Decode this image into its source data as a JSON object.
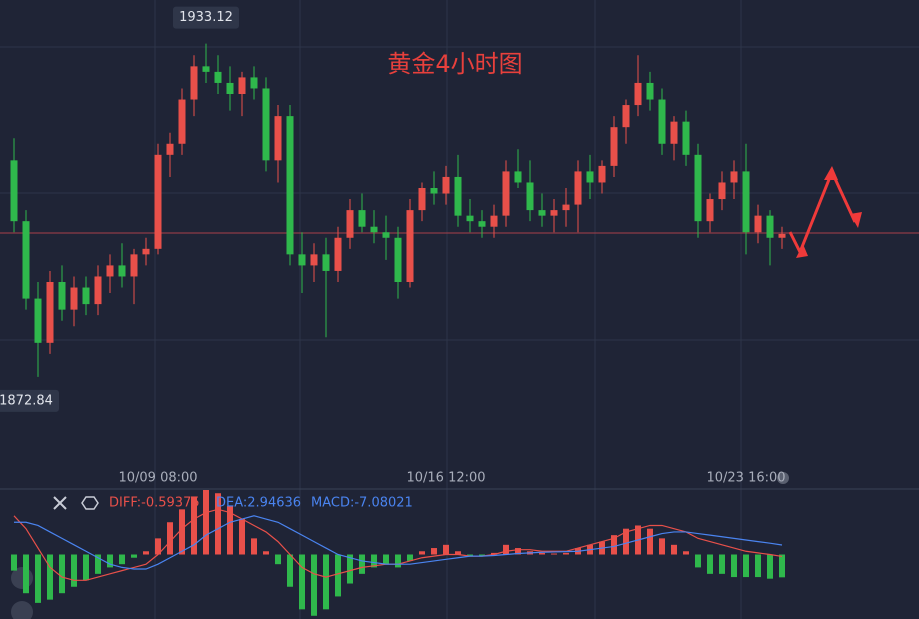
{
  "chart_data": [
    {
      "type": "candlestick",
      "title": "黄金4小时图",
      "up_color": "#e8504a",
      "down_color": "#2fb84c",
      "ylim": [
        1856,
        1941
      ],
      "categories": [
        null,
        null,
        null,
        null,
        null,
        null,
        null,
        null,
        null,
        null,
        null,
        null,
        "10/09 08:00",
        null,
        null,
        null,
        null,
        null,
        null,
        null,
        null,
        null,
        null,
        null,
        null,
        null,
        null,
        null,
        null,
        null,
        null,
        null,
        null,
        null,
        null,
        null,
        "10/16 12:00",
        null,
        null,
        null,
        null,
        null,
        null,
        null,
        null,
        null,
        null,
        null,
        null,
        null,
        null,
        null,
        null,
        null,
        null,
        null,
        null,
        null,
        null,
        null,
        null,
        "10/23 16:00",
        null,
        null,
        null
      ],
      "open": [
        1912,
        1901,
        1887,
        1879,
        1890,
        1885,
        1889,
        1886,
        1891,
        1893,
        1891,
        1895,
        1896,
        1913,
        1915,
        1923,
        1929,
        1928,
        1926,
        1924,
        1927,
        1925,
        1912,
        1920,
        1895,
        1893,
        1895,
        1892,
        1898,
        1903,
        1900,
        1899,
        1898,
        1890,
        1903,
        1907,
        1906,
        1909,
        1902,
        1901,
        1900,
        1902,
        1910,
        1908,
        1903,
        1902,
        1903,
        1904,
        1910,
        1908,
        1911,
        1918,
        1922,
        1926,
        1923,
        1915,
        1919,
        1913,
        1901,
        1905,
        1908,
        1910,
        1899,
        1902,
        1898
      ],
      "high": [
        1916,
        1903,
        1890,
        1892,
        1893,
        1891,
        1891,
        1893,
        1895,
        1897,
        1896,
        1898,
        1915,
        1917,
        1925,
        1931,
        1933.12,
        1931,
        1929,
        1928,
        1929,
        1927,
        1922,
        1922,
        1899,
        1897,
        1898,
        1900,
        1905,
        1906,
        1903,
        1902,
        1900,
        1905,
        1908,
        1910,
        1911,
        1913,
        1905,
        1903,
        1904,
        1912,
        1914,
        1912,
        1906,
        1905,
        1907,
        1912,
        1913,
        1912,
        1920,
        1923,
        1931,
        1928,
        1925,
        1920,
        1921,
        1915,
        1906,
        1910,
        1912,
        1915,
        1904,
        1903,
        1900
      ],
      "low": [
        1899,
        1885,
        1872.84,
        1877,
        1883,
        1882,
        1884,
        1884,
        1888,
        1889,
        1886,
        1893,
        1895,
        1909,
        1913,
        1920,
        1926,
        1924,
        1921,
        1920,
        1923,
        1910,
        1908,
        1893,
        1888,
        1890,
        1880,
        1890,
        1896,
        1899,
        1897,
        1894,
        1887,
        1889,
        1901,
        1904,
        1904,
        1900,
        1899,
        1898,
        1898,
        1900,
        1907,
        1901,
        1900,
        1899,
        1900,
        1899,
        1905,
        1906,
        1909,
        1915,
        1920,
        1921,
        1913,
        1912,
        1911,
        1898,
        1899,
        1903,
        1905,
        1895,
        1897,
        1893,
        1896
      ],
      "close": [
        1901,
        1887,
        1879,
        1890,
        1885,
        1889,
        1886,
        1891,
        1893,
        1891,
        1895,
        1896,
        1913,
        1915,
        1923,
        1929,
        1928,
        1926,
        1924,
        1927,
        1925,
        1912,
        1920,
        1895,
        1893,
        1895,
        1892,
        1898,
        1903,
        1900,
        1899,
        1898,
        1890,
        1903,
        1907,
        1906,
        1909,
        1902,
        1901,
        1900,
        1902,
        1910,
        1908,
        1903,
        1902,
        1903,
        1904,
        1910,
        1908,
        1911,
        1918,
        1922,
        1926,
        1923,
        1915,
        1919,
        1913,
        1901,
        1905,
        1908,
        1910,
        1899,
        1902,
        1898,
        1898.7
      ],
      "max_label": "1933.12",
      "min_label": "1872.84"
    },
    {
      "type": "macd",
      "ylim": [
        -20,
        20
      ],
      "series": [
        {
          "name": "MACD:-7.08021",
          "color": "#4a84f0",
          "up_color": "#e8504a",
          "down_color": "#2fb84c",
          "values": [
            -5,
            -12,
            -15,
            -14,
            -12,
            -10,
            -8,
            -6,
            -4,
            -3,
            -1,
            1,
            5,
            10,
            14,
            18,
            20,
            19,
            15,
            11,
            5,
            1,
            -3,
            -10,
            -17,
            -19,
            -17,
            -13,
            -9,
            -6,
            -4,
            -3,
            -4,
            -2,
            1,
            2,
            3,
            1,
            -0.5,
            -0.5,
            0.5,
            3,
            2,
            1,
            0.5,
            0.3,
            0.5,
            2,
            3,
            4,
            6,
            8,
            9,
            8,
            5,
            3,
            1,
            -4,
            -6,
            -6,
            -7,
            -7,
            -7,
            -7.5,
            -7.08021
          ]
        },
        {
          "name": "DIFF:-0.59375",
          "color": "#e8504a",
          "values": [
            12,
            8,
            2,
            -4,
            -7,
            -8,
            -8,
            -7,
            -6,
            -5,
            -4,
            -3,
            0,
            4,
            8,
            11,
            13,
            14,
            13,
            11,
            9,
            7,
            4,
            0,
            -4,
            -6,
            -7,
            -6,
            -5,
            -4,
            -3.5,
            -3,
            -3,
            -2,
            -1,
            -0.5,
            0,
            0,
            -0.5,
            -0.5,
            0,
            1,
            1.5,
            1.5,
            1,
            1,
            1,
            2,
            3,
            4,
            5,
            7,
            8,
            9,
            9,
            8,
            7,
            5,
            4,
            3,
            2,
            1,
            0.5,
            0,
            -0.59375
          ]
        },
        {
          "name": "DEA:2.94636",
          "color": "#4a84f0",
          "values": [
            10,
            10,
            9,
            7,
            5,
            3,
            1,
            -1,
            -3,
            -4,
            -4.5,
            -4.5,
            -3,
            -1,
            1,
            3,
            6,
            8,
            10,
            11,
            12,
            11,
            10,
            8,
            6,
            4,
            2,
            0,
            -1,
            -2,
            -2.5,
            -3,
            -3,
            -3,
            -2.5,
            -2,
            -1.5,
            -1,
            -0.5,
            -0.5,
            -0.3,
            0,
            0.3,
            0.5,
            0.7,
            0.8,
            0.9,
            1,
            1.5,
            2,
            2.5,
            3.5,
            4.5,
            5.5,
            6.5,
            7,
            7,
            6.5,
            6,
            5.5,
            5,
            4.5,
            4,
            3.5,
            2.94636
          ]
        }
      ]
    }
  ]
}
